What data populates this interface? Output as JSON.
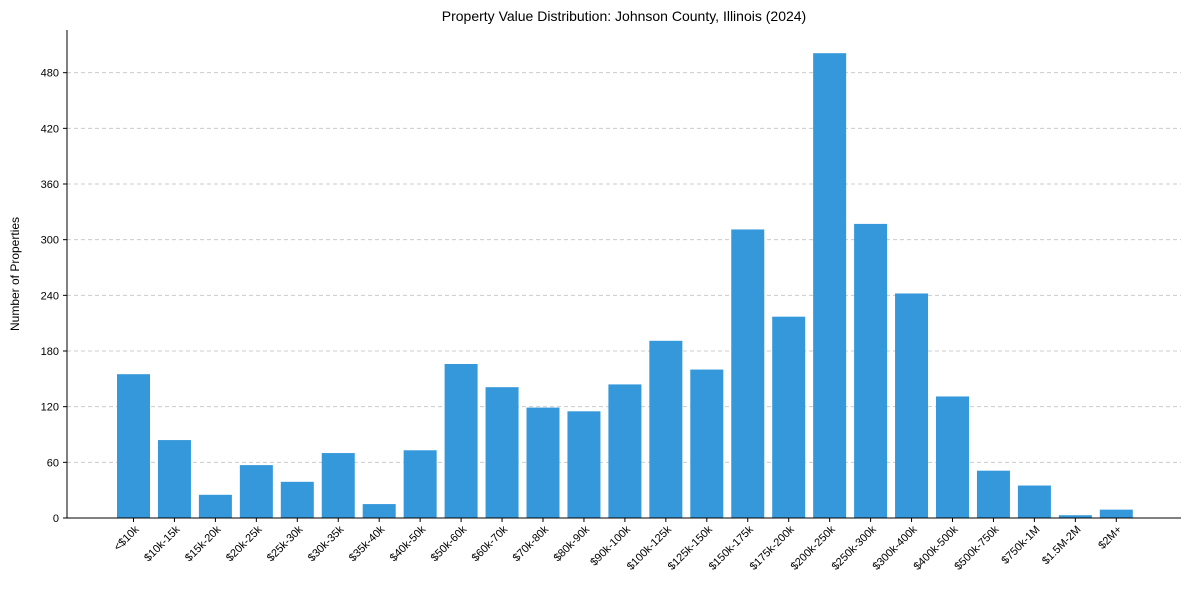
{
  "chart_data": {
    "type": "bar",
    "title": "Property Value Distribution: Johnson County, Illinois (2024)",
    "xlabel": "",
    "ylabel": "Number of Properties",
    "categories": [
      "<$10k",
      "$10k-15k",
      "$15k-20k",
      "$20k-25k",
      "$25k-30k",
      "$30k-35k",
      "$35k-40k",
      "$40k-50k",
      "$50k-60k",
      "$60k-70k",
      "$70k-80k",
      "$80k-90k",
      "$90k-100k",
      "$100k-125k",
      "$125k-150k",
      "$150k-175k",
      "$175k-200k",
      "$200k-250k",
      "$250k-300k",
      "$300k-400k",
      "$400k-500k",
      "$500k-750k",
      "$750k-1M",
      "$1.5M-2M",
      "$2M+"
    ],
    "values": [
      155,
      84,
      25,
      57,
      39,
      70,
      15,
      73,
      166,
      141,
      119,
      115,
      144,
      191,
      160,
      311,
      217,
      501,
      317,
      242,
      131,
      51,
      35,
      3,
      9
    ],
    "yticks": [
      0,
      60,
      120,
      180,
      240,
      300,
      360,
      420,
      480
    ],
    "ylim": [
      0,
      526
    ],
    "grid": "y-dashed",
    "bar_color": "#3498db",
    "grid_color": "#cccccc",
    "axis_color": "#000000"
  }
}
